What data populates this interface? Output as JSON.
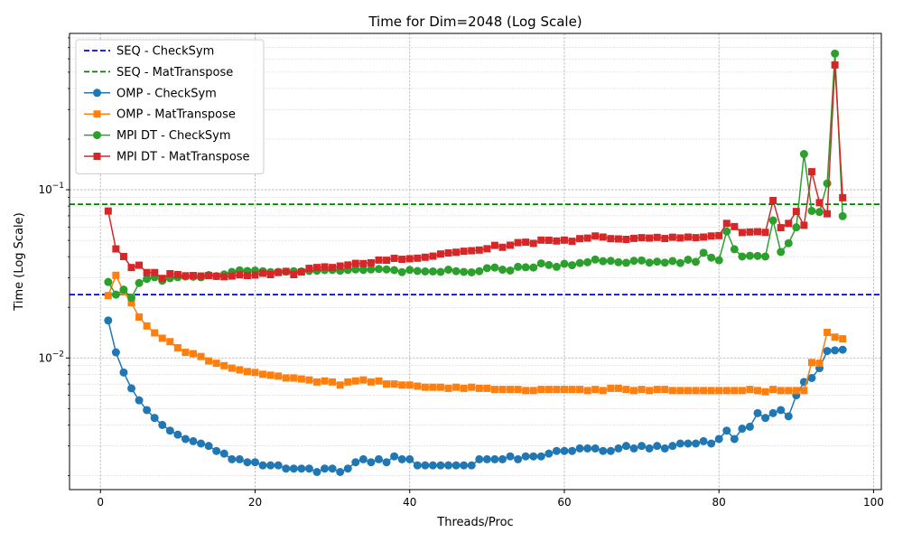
{
  "chart_data": {
    "type": "line",
    "title": "Time for Dim=2048 (Log Scale)",
    "xlabel": "Threads/Proc",
    "ylabel": "Time (Log Scale)",
    "xlim": [
      -4,
      101
    ],
    "ylim": [
      0.00165,
      0.85
    ],
    "y_scale": "log",
    "x_ticks": [
      0,
      20,
      40,
      60,
      80,
      100
    ],
    "y_ticks": [
      {
        "value": 0.01,
        "label": "10",
        "exp": "−2"
      },
      {
        "value": 0.1,
        "label": "10",
        "exp": "−1"
      }
    ],
    "grid": true,
    "legend_position": "upper-left",
    "reference_lines": [
      {
        "name": "SEQ - CheckSym",
        "value": 0.0238,
        "color": "#0000ff",
        "style": "dashed"
      },
      {
        "name": "SEQ - MatTranspose",
        "value": 0.082,
        "color": "#008000",
        "style": "dashed"
      }
    ],
    "x": [
      1,
      2,
      3,
      4,
      5,
      6,
      7,
      8,
      9,
      10,
      11,
      12,
      13,
      14,
      15,
      16,
      17,
      18,
      19,
      20,
      21,
      22,
      23,
      24,
      25,
      26,
      27,
      28,
      29,
      30,
      31,
      32,
      33,
      34,
      35,
      36,
      37,
      38,
      39,
      40,
      41,
      42,
      43,
      44,
      45,
      46,
      47,
      48,
      49,
      50,
      51,
      52,
      53,
      54,
      55,
      56,
      57,
      58,
      59,
      60,
      61,
      62,
      63,
      64,
      65,
      66,
      67,
      68,
      69,
      70,
      71,
      72,
      73,
      74,
      75,
      76,
      77,
      78,
      79,
      80,
      81,
      82,
      83,
      84,
      85,
      86,
      87,
      88,
      89,
      90,
      91,
      92,
      93,
      94,
      95,
      96
    ],
    "series": [
      {
        "name": "OMP - CheckSym",
        "color": "#1f77b4",
        "marker": "circle",
        "values": [
          0.0167,
          0.0108,
          0.0082,
          0.0066,
          0.0056,
          0.0049,
          0.0044,
          0.004,
          0.0037,
          0.0035,
          0.0033,
          0.0032,
          0.0031,
          0.003,
          0.0028,
          0.0027,
          0.0025,
          0.0025,
          0.0024,
          0.0024,
          0.0023,
          0.0023,
          0.0023,
          0.0022,
          0.0022,
          0.0022,
          0.0022,
          0.0021,
          0.0022,
          0.0022,
          0.0021,
          0.0022,
          0.0024,
          0.0025,
          0.0024,
          0.0025,
          0.0024,
          0.0026,
          0.0025,
          0.0025,
          0.0023,
          0.0023,
          0.0023,
          0.0023,
          0.0023,
          0.0023,
          0.0023,
          0.0023,
          0.0025,
          0.0025,
          0.0025,
          0.0025,
          0.0026,
          0.0025,
          0.0026,
          0.0026,
          0.0026,
          0.0027,
          0.0028,
          0.0028,
          0.0028,
          0.0029,
          0.0029,
          0.0029,
          0.0028,
          0.0028,
          0.0029,
          0.003,
          0.0029,
          0.003,
          0.0029,
          0.003,
          0.0029,
          0.003,
          0.0031,
          0.0031,
          0.0031,
          0.0032,
          0.0031,
          0.0033,
          0.0037,
          0.0033,
          0.0038,
          0.0039,
          0.0047,
          0.0044,
          0.0047,
          0.0049,
          0.0045,
          0.006,
          0.0072,
          0.0076,
          0.0087,
          0.011,
          0.0111,
          0.0112
        ]
      },
      {
        "name": "OMP - MatTranspose",
        "color": "#ff7f0e",
        "marker": "square",
        "values": [
          0.0235,
          0.031,
          0.0248,
          0.0213,
          0.0175,
          0.0155,
          0.0141,
          0.0131,
          0.0125,
          0.0115,
          0.0108,
          0.0106,
          0.0102,
          0.0096,
          0.0093,
          0.009,
          0.0087,
          0.0085,
          0.0083,
          0.0082,
          0.008,
          0.0079,
          0.0078,
          0.0076,
          0.0076,
          0.0075,
          0.0074,
          0.0072,
          0.0073,
          0.0072,
          0.0069,
          0.0072,
          0.0073,
          0.0074,
          0.0072,
          0.0073,
          0.007,
          0.007,
          0.0069,
          0.0069,
          0.0068,
          0.0067,
          0.0067,
          0.0067,
          0.0066,
          0.0067,
          0.0066,
          0.0067,
          0.0066,
          0.0066,
          0.0065,
          0.0065,
          0.0065,
          0.0065,
          0.0064,
          0.0064,
          0.0065,
          0.0065,
          0.0065,
          0.0065,
          0.0065,
          0.0065,
          0.0064,
          0.0065,
          0.0064,
          0.0066,
          0.0066,
          0.0065,
          0.0064,
          0.0065,
          0.0064,
          0.0065,
          0.0065,
          0.0064,
          0.0064,
          0.0064,
          0.0064,
          0.0064,
          0.0064,
          0.0064,
          0.0064,
          0.0064,
          0.0064,
          0.0065,
          0.0064,
          0.0063,
          0.0065,
          0.0064,
          0.0064,
          0.0064,
          0.0064,
          0.0094,
          0.0093,
          0.0142,
          0.0133,
          0.013
        ]
      },
      {
        "name": "MPI DT - CheckSym",
        "color": "#2ca02c",
        "marker": "circle",
        "values": [
          0.0283,
          0.0238,
          0.0255,
          0.0228,
          0.0279,
          0.0295,
          0.0302,
          0.0288,
          0.0298,
          0.0302,
          0.0305,
          0.0304,
          0.0302,
          0.0311,
          0.0307,
          0.0314,
          0.0325,
          0.0332,
          0.0329,
          0.0331,
          0.0328,
          0.0324,
          0.0325,
          0.0326,
          0.0328,
          0.0327,
          0.0329,
          0.033,
          0.0333,
          0.0334,
          0.033,
          0.0334,
          0.0336,
          0.0334,
          0.0336,
          0.0338,
          0.0336,
          0.0333,
          0.0324,
          0.0334,
          0.0329,
          0.0327,
          0.0327,
          0.0325,
          0.0335,
          0.0328,
          0.0325,
          0.0323,
          0.0328,
          0.0342,
          0.0345,
          0.0335,
          0.0331,
          0.0348,
          0.0346,
          0.0345,
          0.0365,
          0.0357,
          0.0348,
          0.0363,
          0.0356,
          0.0367,
          0.0371,
          0.0385,
          0.0376,
          0.0378,
          0.0371,
          0.0368,
          0.0378,
          0.038,
          0.0369,
          0.0374,
          0.0369,
          0.0377,
          0.0367,
          0.0384,
          0.0373,
          0.0422,
          0.0395,
          0.0381,
          0.0565,
          0.0443,
          0.0401,
          0.0405,
          0.0404,
          0.0401,
          0.0657,
          0.0427,
          0.0481,
          0.0598,
          0.163,
          0.0749,
          0.0738,
          0.109,
          0.645,
          0.0697
        ]
      },
      {
        "name": "MPI DT - MatTranspose",
        "color": "#d62728",
        "marker": "square",
        "values": [
          0.0747,
          0.0445,
          0.0401,
          0.0345,
          0.0356,
          0.0322,
          0.0322,
          0.0297,
          0.0317,
          0.0313,
          0.0308,
          0.0309,
          0.0307,
          0.0309,
          0.0306,
          0.0304,
          0.0307,
          0.0312,
          0.0309,
          0.0311,
          0.0319,
          0.0313,
          0.0322,
          0.0327,
          0.0313,
          0.0325,
          0.0341,
          0.0345,
          0.0348,
          0.0345,
          0.0352,
          0.0357,
          0.0365,
          0.0364,
          0.0368,
          0.0382,
          0.0381,
          0.0391,
          0.0386,
          0.0389,
          0.0392,
          0.0397,
          0.0403,
          0.0415,
          0.0421,
          0.0425,
          0.0431,
          0.0434,
          0.0438,
          0.0446,
          0.0467,
          0.0455,
          0.0468,
          0.0485,
          0.0488,
          0.048,
          0.0502,
          0.0501,
          0.0496,
          0.0502,
          0.0494,
          0.0512,
          0.0516,
          0.0531,
          0.0523,
          0.0512,
          0.051,
          0.0507,
          0.0514,
          0.0519,
          0.0516,
          0.0521,
          0.0513,
          0.0522,
          0.0517,
          0.0523,
          0.0519,
          0.0523,
          0.0531,
          0.0534,
          0.0631,
          0.0604,
          0.0557,
          0.0561,
          0.0563,
          0.0558,
          0.0863,
          0.0595,
          0.0631,
          0.0743,
          0.0615,
          0.128,
          0.0838,
          0.072,
          0.552,
          0.0897
        ]
      }
    ]
  }
}
